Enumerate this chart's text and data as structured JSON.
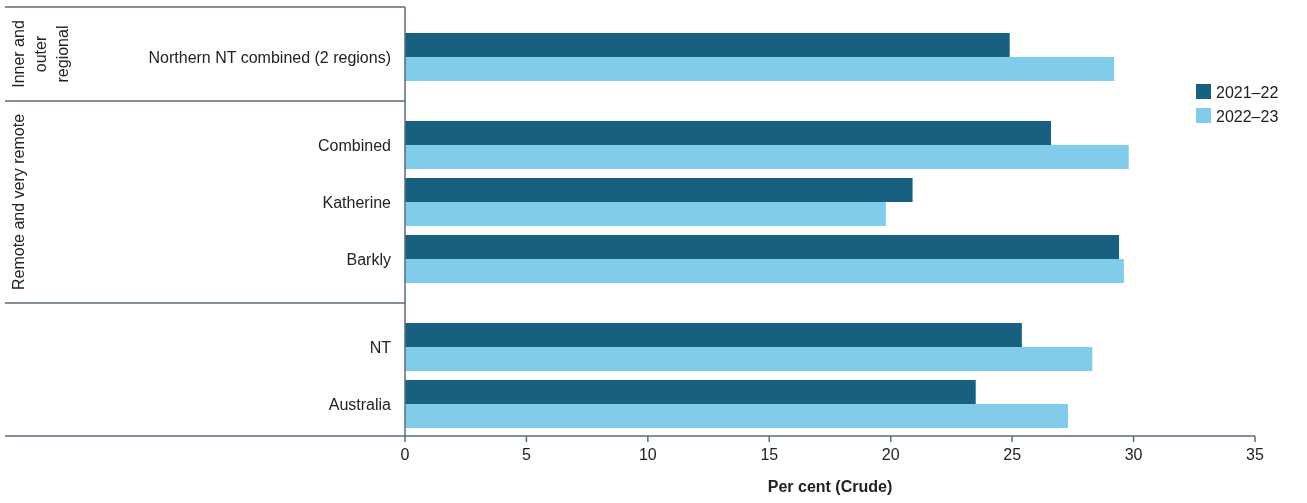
{
  "chart_data": {
    "type": "bar",
    "orientation": "horizontal",
    "categories": [
      "Northern NT combined (2 regions)",
      "Combined",
      "Katherine",
      "Barkly",
      "NT",
      "Australia"
    ],
    "series": [
      {
        "name": "2021–22",
        "color": "#17607f",
        "values": [
          24.9,
          26.6,
          20.9,
          29.4,
          25.4,
          23.5
        ]
      },
      {
        "name": "2022–23",
        "color": "#82cceb",
        "values": [
          29.2,
          29.8,
          19.8,
          29.6,
          28.3,
          27.3
        ]
      }
    ],
    "xlabel": "Per cent (Crude)",
    "xlim": [
      0,
      35
    ],
    "xticks": [
      0,
      5,
      10,
      15,
      20,
      25,
      30,
      35
    ],
    "annotations": [
      "Inner and outer regional",
      "Remote and very remote"
    ],
    "legend": "right",
    "grid": false
  }
}
